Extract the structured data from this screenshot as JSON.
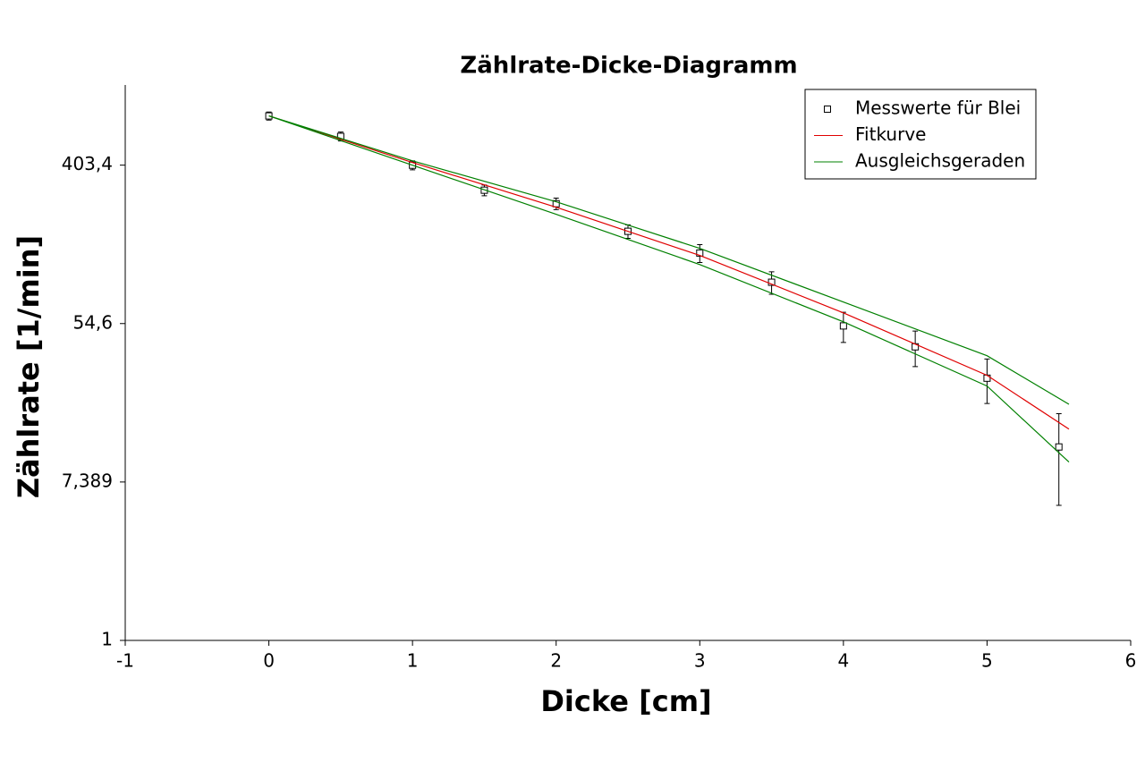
{
  "chart_data": {
    "type": "scatter",
    "title": "Zählrate-Dicke-Diagramm",
    "x_label": "Dicke [cm]",
    "y_label": "Zählrate [1/min]",
    "xlim": [
      -1,
      6
    ],
    "xticks": [
      -1,
      0,
      1,
      2,
      3,
      4,
      5,
      6
    ],
    "ylim": [
      1,
      1110
    ],
    "log_y": true,
    "yticks": [
      1,
      {
        "value": 7.389,
        "label": "7,389"
      },
      {
        "value": 54.6,
        "label": "54,6"
      },
      {
        "value": 403.4,
        "label": "403,4"
      }
    ],
    "legend": "top-right",
    "series": [
      {
        "name": "Messwerte für Blei",
        "color": "#000000",
        "kind": "points",
        "x": [
          0,
          0.5,
          1,
          1.5,
          2,
          2.5,
          3,
          3.5,
          4,
          4.5,
          5,
          5.5
        ],
        "values": [
          751,
          580,
          403,
          294,
          248,
          175,
          133,
          92,
          53,
          40.7,
          27.4,
          11.5
        ],
        "errors": [
          38,
          33,
          23,
          20,
          18,
          15,
          15,
          13,
          10,
          9,
          7.5,
          6
        ]
      },
      {
        "name": "Fitkurve",
        "color": "#e00000",
        "kind": "line",
        "x": [
          0,
          1,
          2,
          3,
          4,
          5,
          5.57
        ],
        "values": [
          751,
          417,
          237,
          129,
          62.5,
          28.4,
          14.4
        ]
      },
      {
        "name": "Ausgleichsgeraden",
        "color": "#008000",
        "kind": "lines",
        "x": [
          0,
          1,
          2,
          3,
          4,
          5,
          5.57
        ],
        "lines": [
          [
            751,
            426,
            254,
            141,
            71.6,
            36.4,
            19.7
          ],
          [
            751,
            403,
            217,
            115,
            55.8,
            24.8,
            9.5
          ]
        ]
      }
    ]
  }
}
